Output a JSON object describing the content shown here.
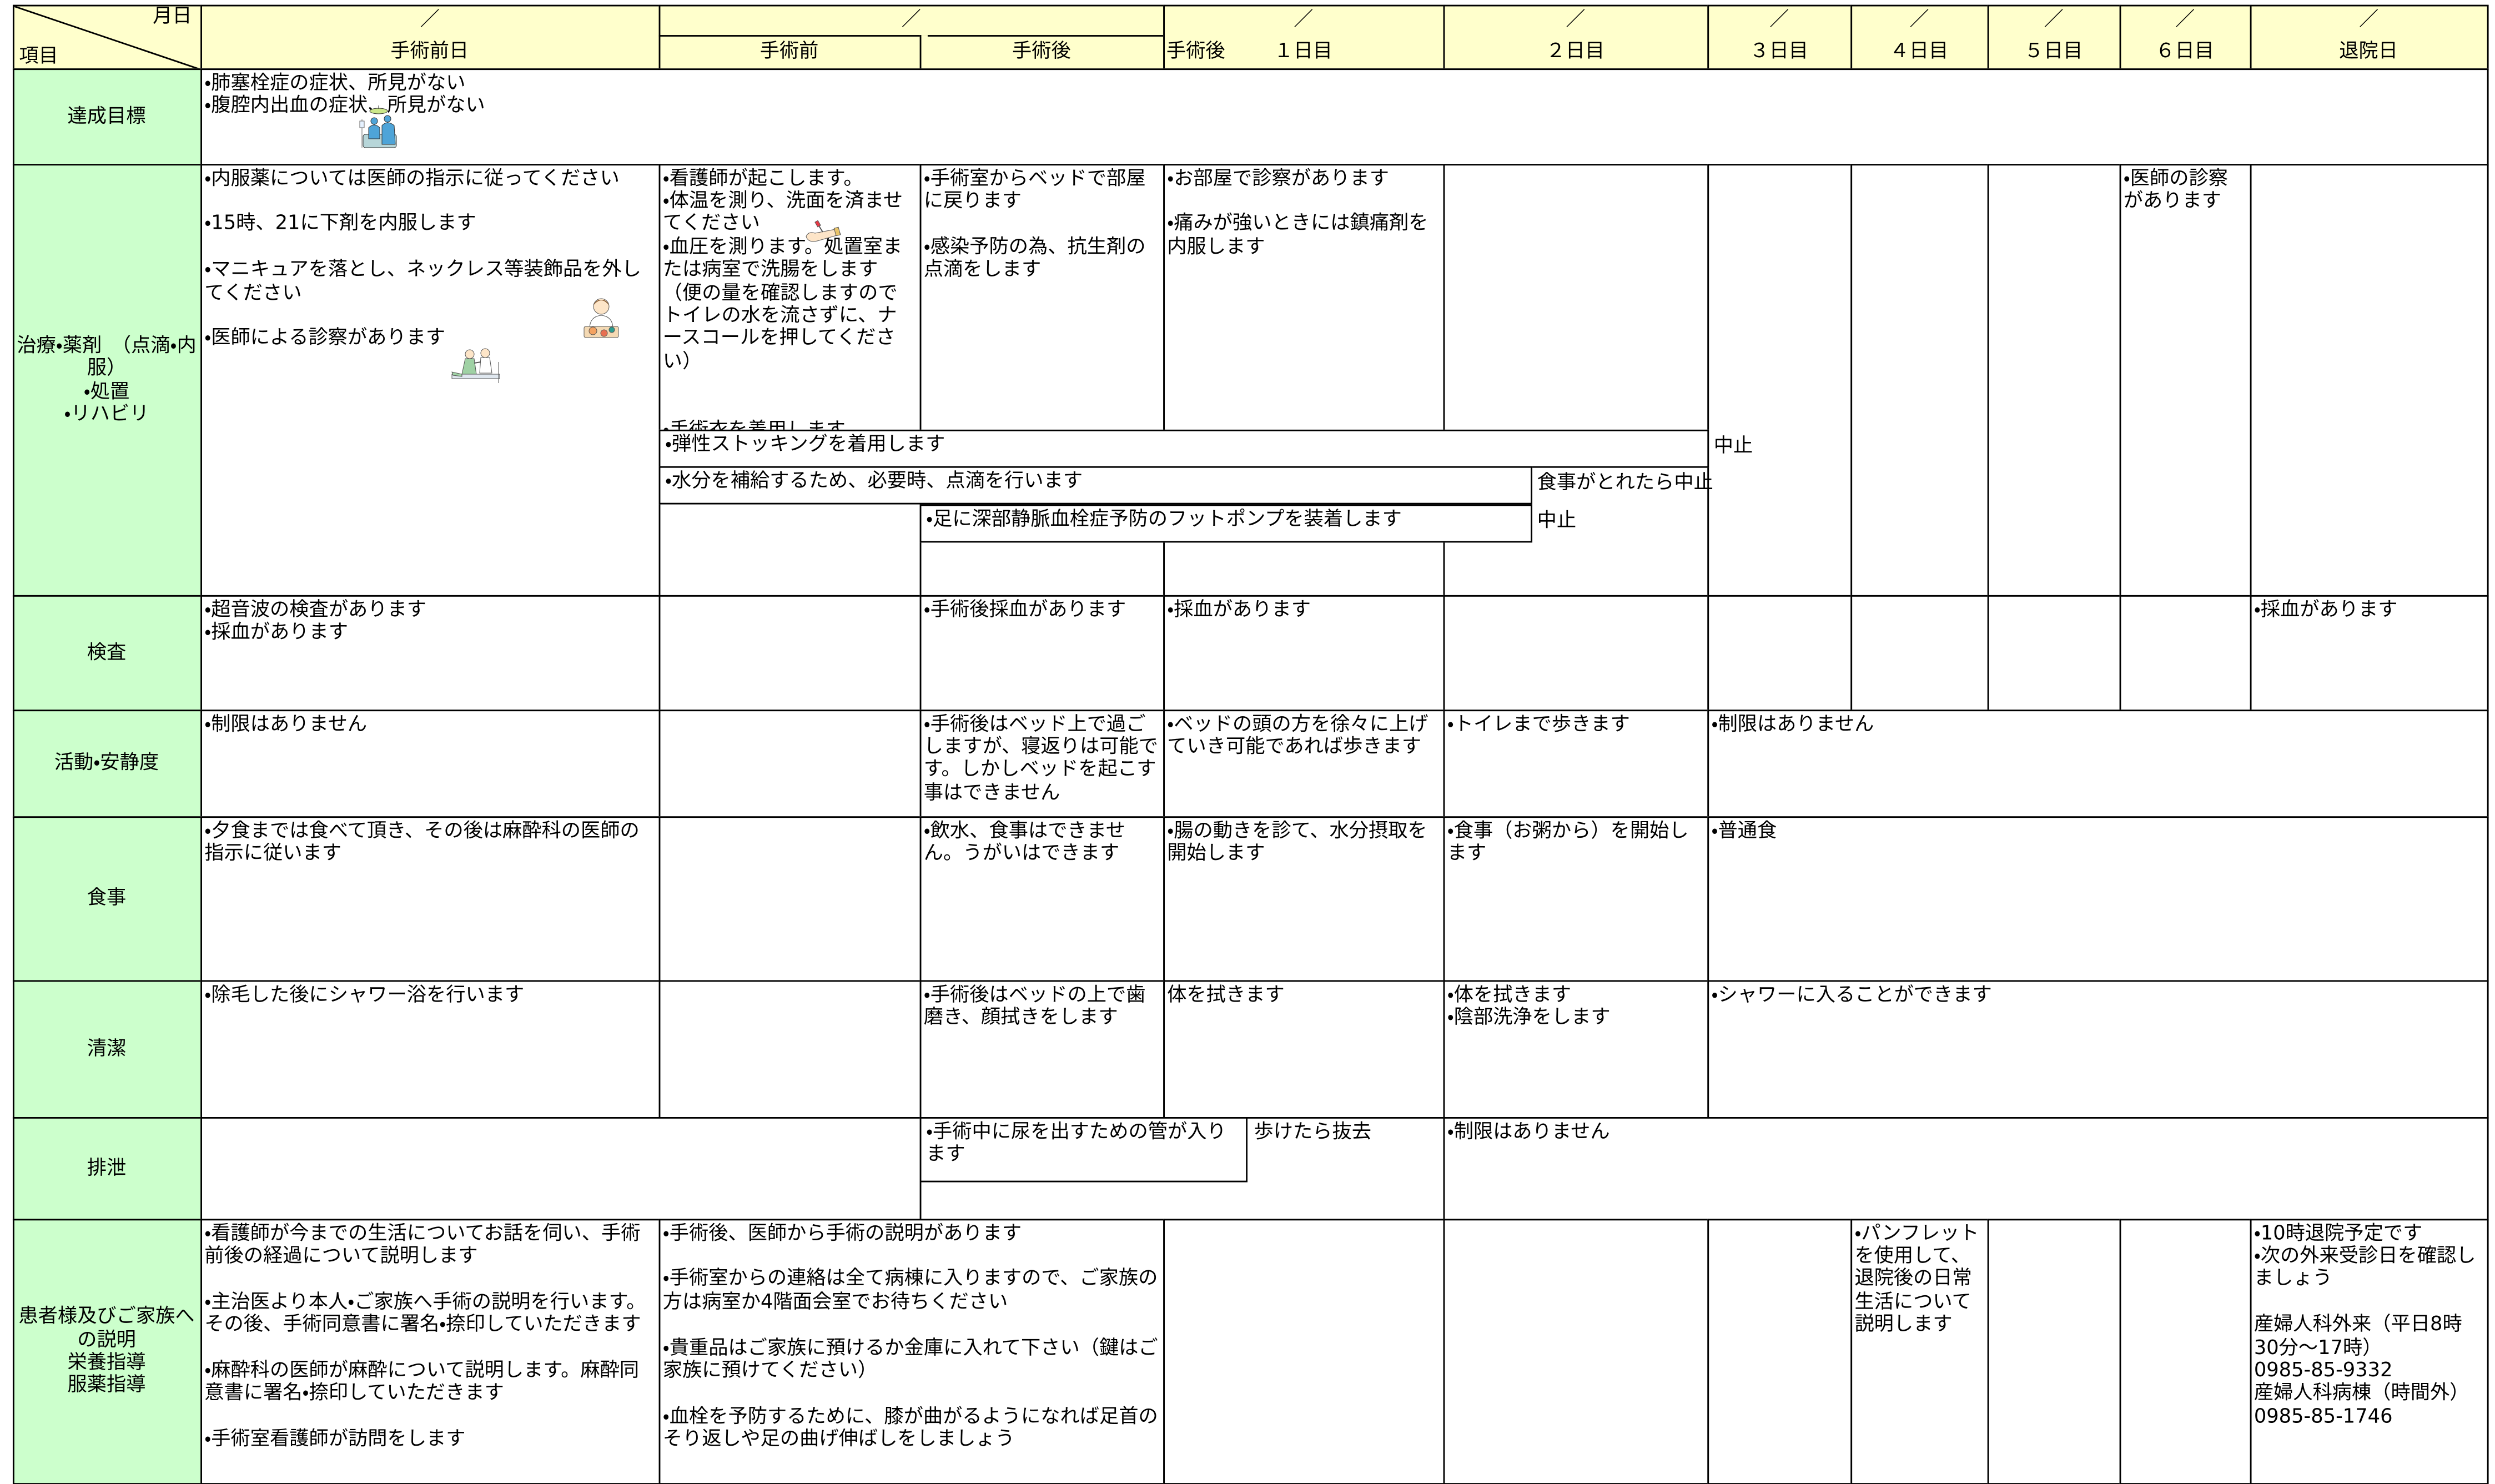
{
  "header": {
    "corner_date": "月日",
    "corner_item": "項目",
    "dates": [
      "／",
      "／",
      "／",
      "／",
      "／",
      "／",
      "／",
      "／",
      "／"
    ],
    "columns": [
      "手術前日",
      "手術前",
      "手術後",
      "１日目",
      "２日目",
      "３日目",
      "４日目",
      "５日目",
      "６日目",
      "退院日"
    ],
    "day1_prefix": "手術後"
  },
  "rows": [
    {
      "item": "達成目標",
      "cells": [
        "・肺塞栓症の症状、所見がない\n・腹腔内出血の症状、所見がない"
      ]
    },
    {
      "item": "治療・薬剤　（点滴・内服）\n・処置\n・リハビリ",
      "cells": [
        "・内服薬については医師の指示に従ってください\n\n・15時、21に下剤を内服します\n\n・マニキュアを落とし、ネックレス等装飾品を外してください\n\n・医師による診察があります",
        "・看護師が起こします。\n・体温を測り、洗面を済ませてください\n・血圧を測ります。処置室または病室で洗腸をします（便の量を確認しますのでトイレの水を流さずに、ナースコールを押してください）\n\n\n・手術衣を着用します",
        "・手術室からベッドで部屋に戻ります\n\n・感染予防の為、抗生剤の点滴をします",
        "・お部屋で診察があります\n\n・痛みが強いときには鎮痛剤を内服します",
        "・医師の診察があります",
        "・弾性ストッキングを着用します",
        "中止",
        "・水分を補給するため、必要時、点滴を行います",
        "食事がとれたら中止",
        "・足に深部静脈血栓症予防のフットポンプを装着します",
        "中止"
      ]
    },
    {
      "item": "検査",
      "cells": [
        "・超音波の検査があります\n・採血があります",
        "・手術後採血があります",
        "・採血があります",
        "・採血があります"
      ]
    },
    {
      "item": "活動・安静度",
      "cells": [
        "・制限はありません",
        "・手術後はベッド上で過ごしますが、寝返りは可能です。しかしベッドを起こす事はできません",
        "・ベッドの頭の方を徐々に上げていき可能であれば歩きます",
        "・トイレまで歩きます",
        "・制限はありません"
      ]
    },
    {
      "item": "食事",
      "cells": [
        "・夕食までは食べて頂き、その後は麻酔科の医師の指示に従います",
        "・飲水、食事はできません。うがいはできます",
        "・腸の動きを診て、水分摂取を開始します",
        "・食事（お粥から）を開始します",
        "・普通食"
      ]
    },
    {
      "item": "清潔",
      "cells": [
        "・除毛した後にシャワー浴を行います",
        "・手術後はベッドの上で歯磨き、顔拭きをします",
        "体を拭きます",
        "・体を拭きます\n・陰部洗浄をします",
        "・シャワーに入ることができます"
      ]
    },
    {
      "item": "排泄",
      "cells": [
        "・手術中に尿を出すための管が入ります",
        "歩けたら抜去",
        "・制限はありません"
      ]
    },
    {
      "item": "患者様及びご家族への説明\n栄養指導\n服薬指導",
      "cells": [
        "・看護師が今までの生活についてお話を伺い、手術前後の経過について説明します\n\n・主治医より本人・ご家族へ手術の説明を行います。その後、手術同意書に署名・捺印していただきます\n\n・麻酔科の医師が麻酔について説明します。麻酔同意書に署名・捺印していただきます\n\n・手術室看護師が訪問をします",
        "・手術後、医師から手術の説明があります\n\n・手術室からの連絡は全て病棟に入りますので、ご家族の方は病室か4階面会室でお待ちください\n\n・貴重品はご家族に預けるか金庫に入れて下さい（鍵はご家族に預けてください）\n\n・血栓を予防するために、膝が曲がるようになれば足首のそり返しや足の曲げ伸ばしをしましょう",
        "・パンフレットを使用して、退院後の日常生活について説明します",
        "・10時退院予定です\n・次の外来受診日を確認しましょう\n\n産婦人科外来（平日8時30分～17時）\n0985-85-9332\n産婦人科病棟（時間外）\n0985-85-1746"
      ]
    }
  ]
}
